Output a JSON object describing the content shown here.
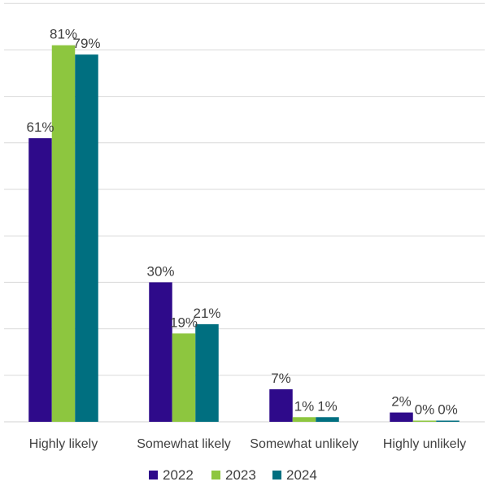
{
  "chart_data": {
    "type": "bar",
    "categories": [
      "Highly likely",
      "Somewhat likely",
      "Somewhat unlikely",
      "Highly unlikely"
    ],
    "series": [
      {
        "name": "2022",
        "color": "#2E0A8A",
        "values": [
          61,
          30,
          7,
          2
        ],
        "labels": [
          "61%",
          "30%",
          "7%",
          "2%"
        ]
      },
      {
        "name": "2023",
        "color": "#8DC63F",
        "values": [
          81,
          19,
          1,
          0
        ],
        "labels": [
          "81%",
          "19%",
          "1%",
          "0%"
        ]
      },
      {
        "name": "2024",
        "color": "#006F80",
        "values": [
          79,
          21,
          1,
          0
        ],
        "labels": [
          "79%",
          "21%",
          "1%",
          "0%"
        ]
      }
    ],
    "ylim": [
      0,
      90
    ],
    "grid": true,
    "legend": "bottom"
  }
}
